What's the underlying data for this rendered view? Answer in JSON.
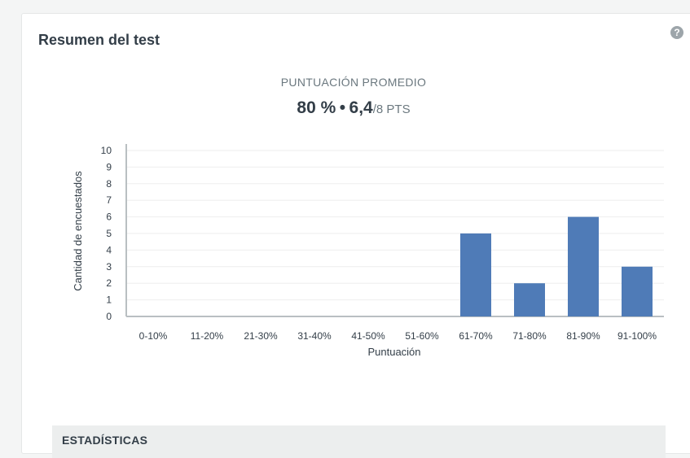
{
  "card": {
    "title": "Resumen del test",
    "help_icon": "question-icon"
  },
  "summary": {
    "label": "PUNTUACIÓN PROMEDIO",
    "percent": "80 %",
    "separator": "•",
    "score": "6,4",
    "max": "/8 PTS"
  },
  "chart_data": {
    "type": "bar",
    "categories": [
      "0-10%",
      "11-20%",
      "21-30%",
      "31-40%",
      "41-50%",
      "51-60%",
      "61-70%",
      "71-80%",
      "81-90%",
      "91-100%"
    ],
    "values": [
      0,
      0,
      0,
      0,
      0,
      0,
      5,
      2,
      6,
      3
    ],
    "xlabel": "Puntuación",
    "ylabel": "Cantidad de encuestados",
    "ylim": [
      0,
      10
    ],
    "yticks": [
      "0",
      "1",
      "2",
      "3",
      "4",
      "5",
      "6",
      "7",
      "8",
      "9",
      "10"
    ],
    "grid": true,
    "bar_color": "#4f7bb7"
  },
  "stats": {
    "label": "ESTADÍSTICAS"
  }
}
